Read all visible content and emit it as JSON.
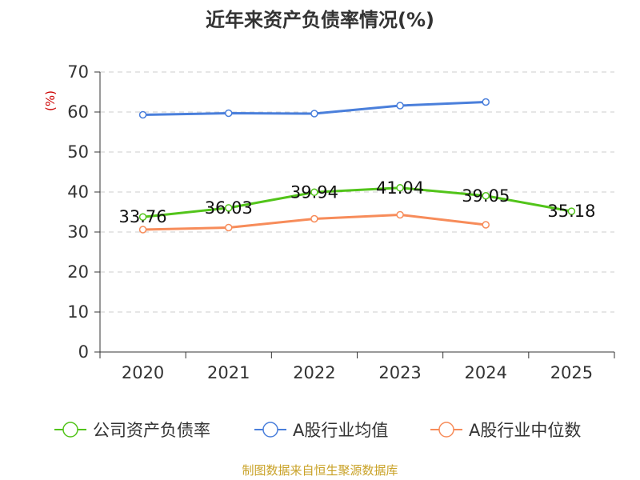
{
  "chart_data": {
    "type": "line",
    "title": "近年来资产负债率情况(%)",
    "ylabel": "(%)",
    "xlabel": "",
    "ylim": [
      0,
      70
    ],
    "yticks": [
      0,
      10,
      20,
      30,
      40,
      50,
      60,
      70
    ],
    "categories": [
      "2020",
      "2021",
      "2022",
      "2023",
      "2024",
      "2025"
    ],
    "grid": true,
    "legend_position": "bottom",
    "series": [
      {
        "name": "公司资产负债率",
        "color": "#52c41a",
        "values": [
          33.76,
          36.03,
          39.94,
          41.04,
          39.05,
          35.18
        ],
        "labels": [
          "33.76",
          "36.03",
          "39.94",
          "41.04",
          "39.05",
          "35.18"
        ]
      },
      {
        "name": "A股行业均值",
        "color": "#4a7fdb",
        "values": [
          59.3,
          59.7,
          59.6,
          61.6,
          62.5,
          null
        ],
        "labels": []
      },
      {
        "name": "A股行业中位数",
        "color": "#f78c5a",
        "values": [
          30.6,
          31.1,
          33.3,
          34.3,
          31.8,
          null
        ],
        "labels": []
      }
    ],
    "source": "制图数据来自恒生聚源数据库",
    "colors": {
      "axis": "#333333",
      "grid": "#cccccc",
      "unit": "#cc0000",
      "source": "#c9a227"
    }
  }
}
